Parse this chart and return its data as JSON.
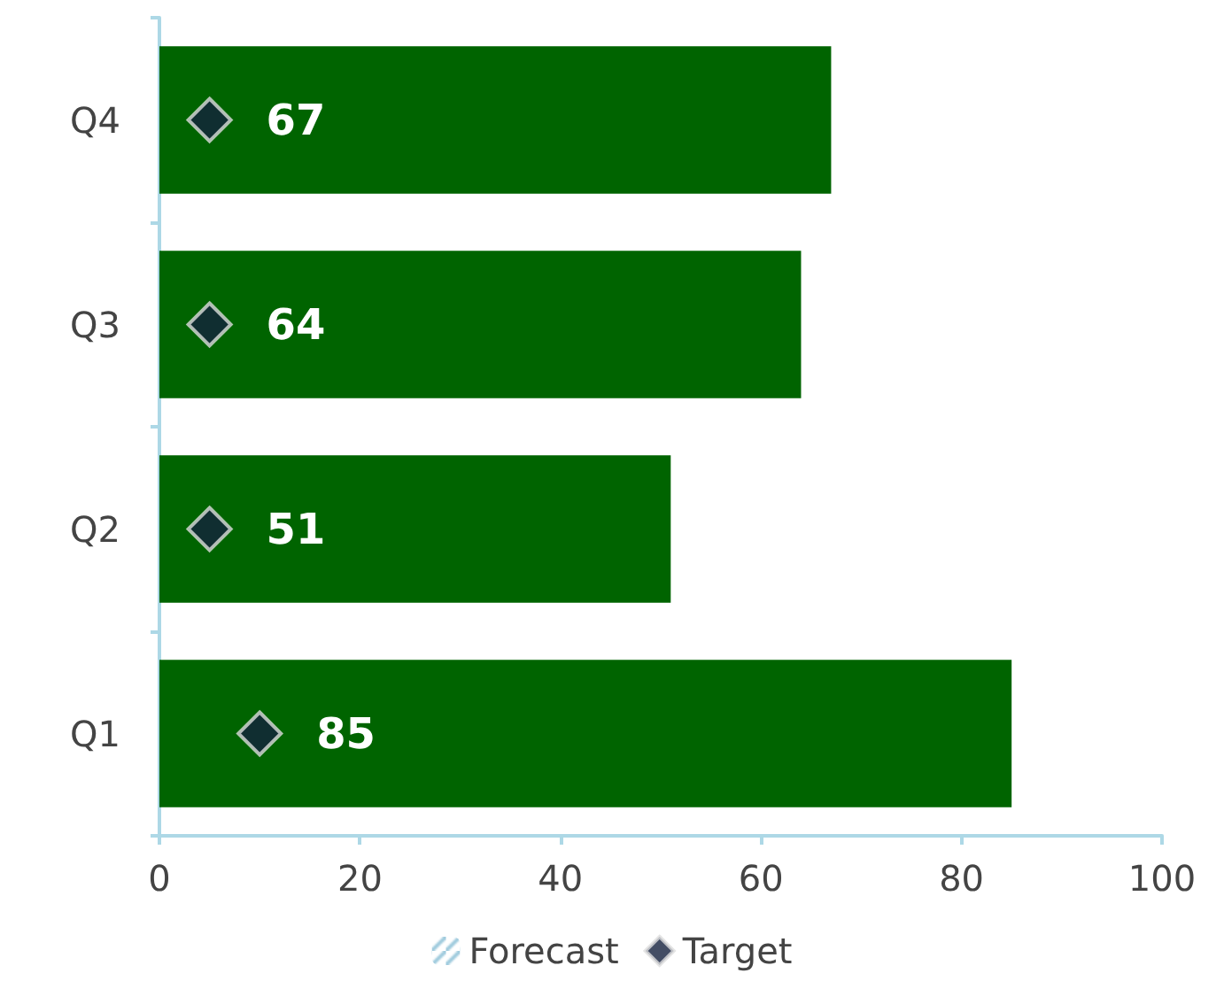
{
  "chart_data": {
    "type": "bar",
    "orientation": "horizontal",
    "categories": [
      "Q4",
      "Q3",
      "Q2",
      "Q1"
    ],
    "series": [
      {
        "color": "#006400",
        "values": [
          67,
          64,
          51,
          85
        ],
        "value_labels": [
          "67",
          "64",
          "51",
          "85"
        ]
      },
      {
        "name": "Forecast",
        "color": "#9cc9dc",
        "values": [
          null,
          null,
          null,
          null
        ]
      },
      {
        "name": "Target",
        "type": "scatter",
        "color": "#14213d",
        "marker": "diamond",
        "values": [
          5,
          5,
          5,
          10
        ]
      }
    ],
    "xlim": [
      0,
      100
    ],
    "xticks": [
      0,
      20,
      40,
      60,
      80,
      100
    ],
    "grid": false,
    "legend": "bottom"
  }
}
